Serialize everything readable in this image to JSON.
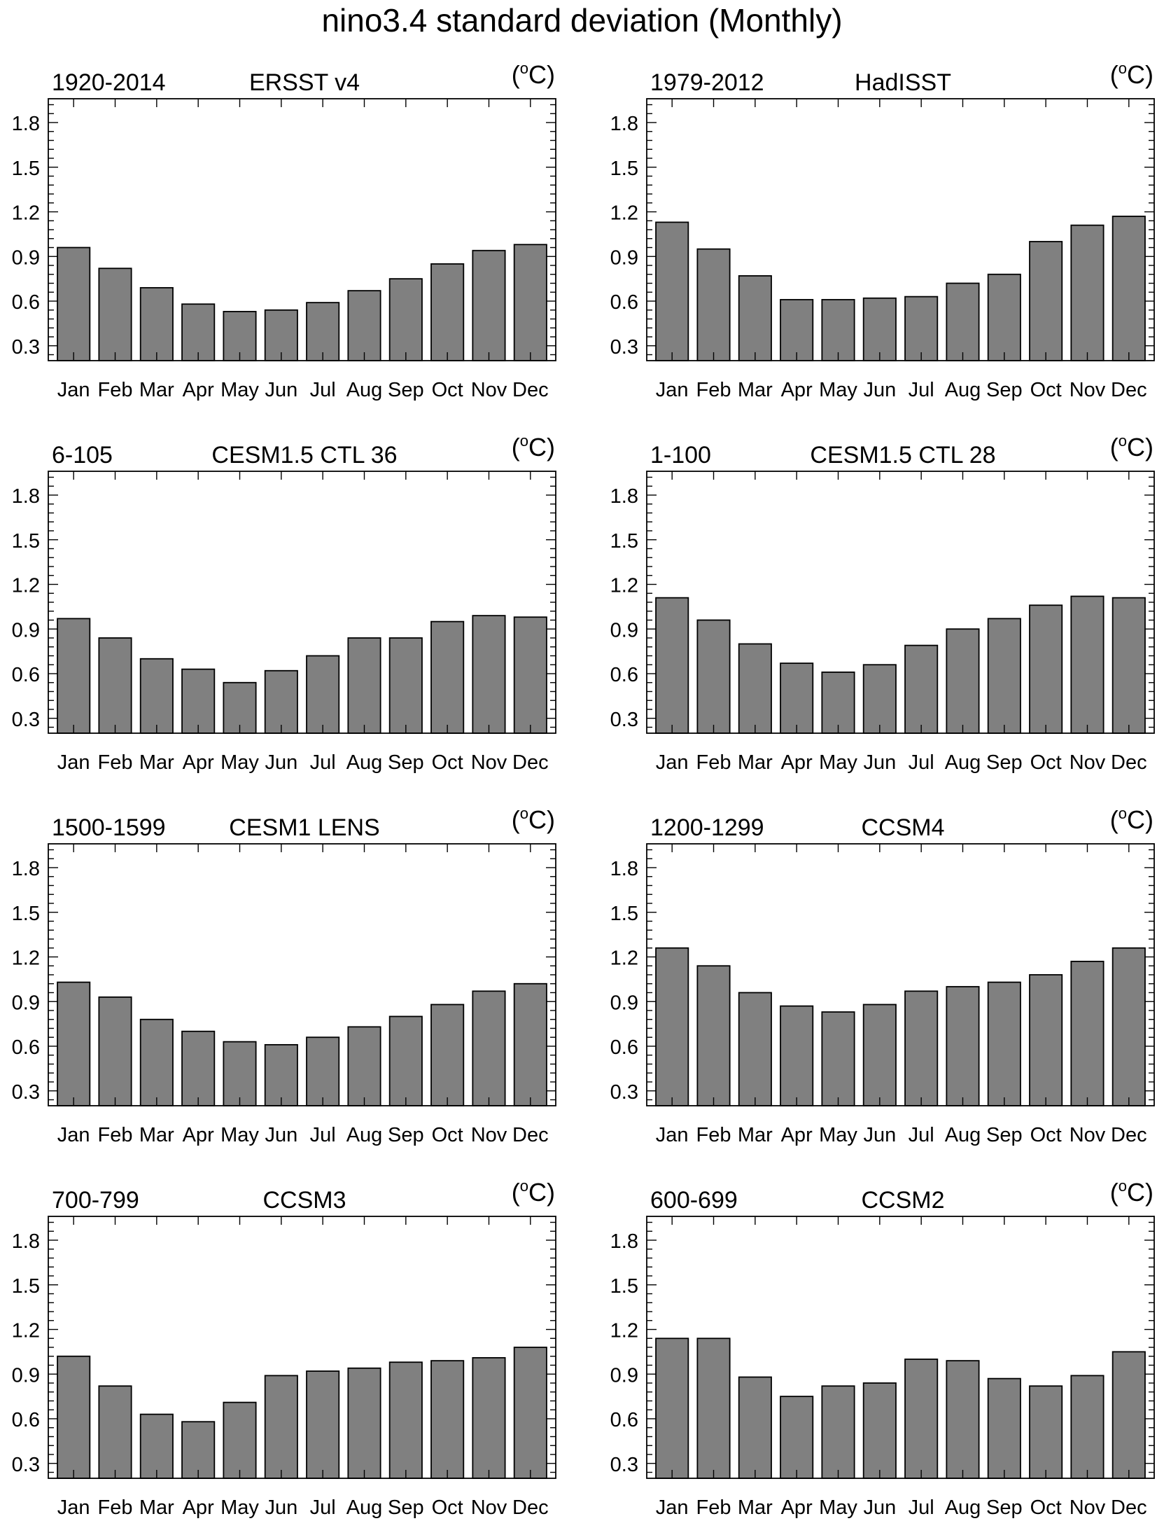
{
  "title": "nino3.4 standard deviation (Monthly)",
  "chart_data": [
    {
      "type": "bar",
      "period": "1920-2014",
      "title": "ERSST v4",
      "unit": "(°C)",
      "categories": [
        "Jan",
        "Feb",
        "Mar",
        "Apr",
        "May",
        "Jun",
        "Jul",
        "Aug",
        "Sep",
        "Oct",
        "Nov",
        "Dec"
      ],
      "values": [
        0.96,
        0.82,
        0.69,
        0.58,
        0.53,
        0.54,
        0.59,
        0.67,
        0.75,
        0.85,
        0.94,
        0.98
      ],
      "yticks": [
        "0.3",
        "0.6",
        "0.9",
        "1.2",
        "1.5",
        "1.8"
      ],
      "ylim": [
        0.2,
        1.96
      ],
      "bar_color": "#808080"
    },
    {
      "type": "bar",
      "period": "1979-2012",
      "title": "HadISST",
      "unit": "(°C)",
      "categories": [
        "Jan",
        "Feb",
        "Mar",
        "Apr",
        "May",
        "Jun",
        "Jul",
        "Aug",
        "Sep",
        "Oct",
        "Nov",
        "Dec"
      ],
      "values": [
        1.13,
        0.95,
        0.77,
        0.61,
        0.61,
        0.62,
        0.63,
        0.72,
        0.78,
        1.0,
        1.11,
        1.17
      ],
      "yticks": [
        "0.3",
        "0.6",
        "0.9",
        "1.2",
        "1.5",
        "1.8"
      ],
      "ylim": [
        0.2,
        1.96
      ],
      "bar_color": "#808080"
    },
    {
      "type": "bar",
      "period": "6-105",
      "title": "CESM1.5 CTL 36",
      "unit": "(°C)",
      "categories": [
        "Jan",
        "Feb",
        "Mar",
        "Apr",
        "May",
        "Jun",
        "Jul",
        "Aug",
        "Sep",
        "Oct",
        "Nov",
        "Dec"
      ],
      "values": [
        0.97,
        0.84,
        0.7,
        0.63,
        0.54,
        0.62,
        0.72,
        0.84,
        0.84,
        0.95,
        0.99,
        0.98
      ],
      "yticks": [
        "0.3",
        "0.6",
        "0.9",
        "1.2",
        "1.5",
        "1.8"
      ],
      "ylim": [
        0.2,
        1.96
      ],
      "bar_color": "#808080"
    },
    {
      "type": "bar",
      "period": "1-100",
      "title": "CESM1.5 CTL 28",
      "unit": "(°C)",
      "categories": [
        "Jan",
        "Feb",
        "Mar",
        "Apr",
        "May",
        "Jun",
        "Jul",
        "Aug",
        "Sep",
        "Oct",
        "Nov",
        "Dec"
      ],
      "values": [
        1.11,
        0.96,
        0.8,
        0.67,
        0.61,
        0.66,
        0.79,
        0.9,
        0.97,
        1.06,
        1.12,
        1.11
      ],
      "yticks": [
        "0.3",
        "0.6",
        "0.9",
        "1.2",
        "1.5",
        "1.8"
      ],
      "ylim": [
        0.2,
        1.96
      ],
      "bar_color": "#808080"
    },
    {
      "type": "bar",
      "period": "1500-1599",
      "title": "CESM1 LENS",
      "unit": "(°C)",
      "categories": [
        "Jan",
        "Feb",
        "Mar",
        "Apr",
        "May",
        "Jun",
        "Jul",
        "Aug",
        "Sep",
        "Oct",
        "Nov",
        "Dec"
      ],
      "values": [
        1.03,
        0.93,
        0.78,
        0.7,
        0.63,
        0.61,
        0.66,
        0.73,
        0.8,
        0.88,
        0.97,
        1.02
      ],
      "yticks": [
        "0.3",
        "0.6",
        "0.9",
        "1.2",
        "1.5",
        "1.8"
      ],
      "ylim": [
        0.2,
        1.96
      ],
      "bar_color": "#808080"
    },
    {
      "type": "bar",
      "period": "1200-1299",
      "title": "CCSM4",
      "unit": "(°C)",
      "categories": [
        "Jan",
        "Feb",
        "Mar",
        "Apr",
        "May",
        "Jun",
        "Jul",
        "Aug",
        "Sep",
        "Oct",
        "Nov",
        "Dec"
      ],
      "values": [
        1.26,
        1.14,
        0.96,
        0.87,
        0.83,
        0.88,
        0.97,
        1.0,
        1.03,
        1.08,
        1.17,
        1.26
      ],
      "yticks": [
        "0.3",
        "0.6",
        "0.9",
        "1.2",
        "1.5",
        "1.8"
      ],
      "ylim": [
        0.2,
        1.96
      ],
      "bar_color": "#808080"
    },
    {
      "type": "bar",
      "period": "700-799",
      "title": "CCSM3",
      "unit": "(°C)",
      "categories": [
        "Jan",
        "Feb",
        "Mar",
        "Apr",
        "May",
        "Jun",
        "Jul",
        "Aug",
        "Sep",
        "Oct",
        "Nov",
        "Dec"
      ],
      "values": [
        1.02,
        0.82,
        0.63,
        0.58,
        0.71,
        0.89,
        0.92,
        0.94,
        0.98,
        0.99,
        1.01,
        1.08
      ],
      "yticks": [
        "0.3",
        "0.6",
        "0.9",
        "1.2",
        "1.5",
        "1.8"
      ],
      "ylim": [
        0.2,
        1.96
      ],
      "bar_color": "#808080"
    },
    {
      "type": "bar",
      "period": "600-699",
      "title": "CCSM2",
      "unit": "(°C)",
      "categories": [
        "Jan",
        "Feb",
        "Mar",
        "Apr",
        "May",
        "Jun",
        "Jul",
        "Aug",
        "Sep",
        "Oct",
        "Nov",
        "Dec"
      ],
      "values": [
        1.14,
        1.14,
        0.88,
        0.75,
        0.82,
        0.84,
        1.0,
        0.99,
        0.87,
        0.82,
        0.89,
        1.05
      ],
      "yticks": [
        "0.3",
        "0.6",
        "0.9",
        "1.2",
        "1.5",
        "1.8"
      ],
      "ylim": [
        0.2,
        1.96
      ],
      "bar_color": "#808080"
    }
  ]
}
